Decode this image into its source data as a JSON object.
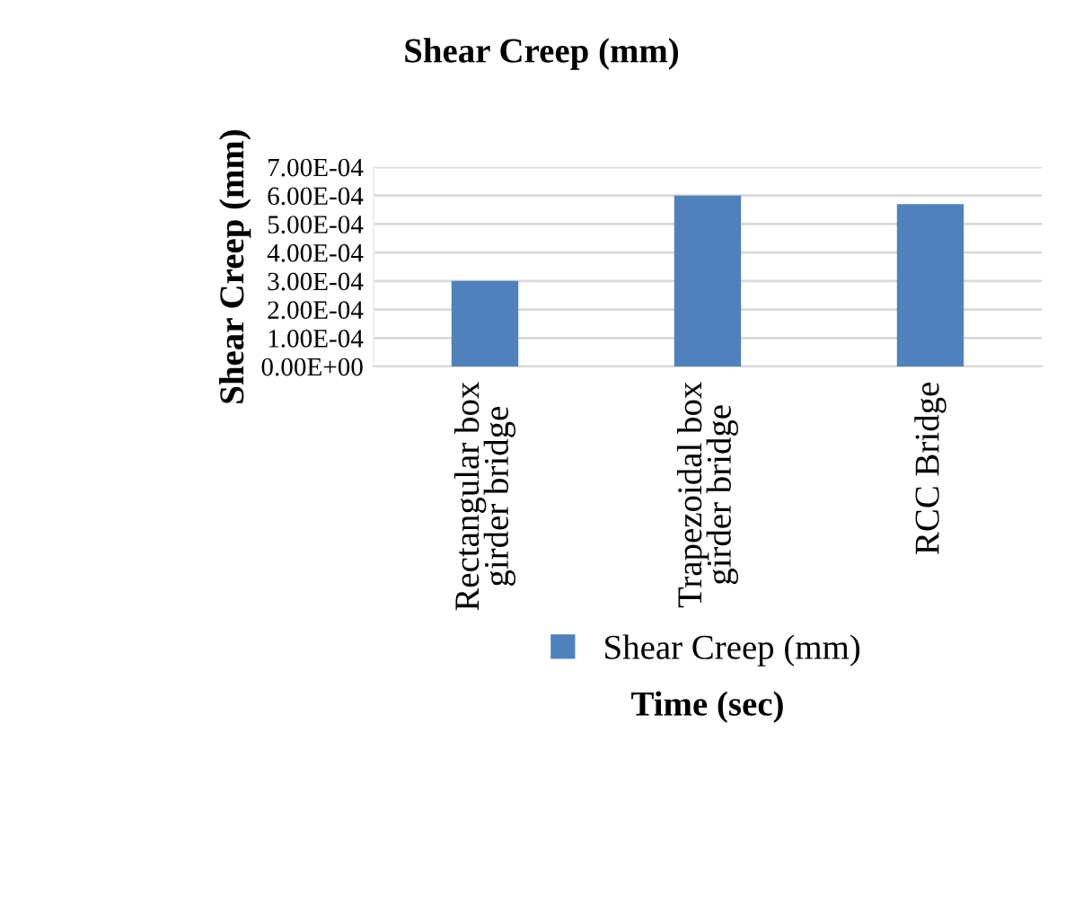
{
  "chart_data": {
    "type": "bar",
    "title": "Shear Creep (mm)",
    "xlabel": "Time (sec)",
    "ylabel": "Shear Creep (mm)",
    "categories": [
      "Rectangular box\ngirder bridge",
      "Trapezoidal box\ngirder bridge",
      "RCC Bridge"
    ],
    "series": [
      {
        "name": "Shear Creep (mm)",
        "color": "#4f81bd",
        "values": [
          0.0003,
          0.0006,
          0.00057
        ]
      }
    ],
    "ylim": [
      0,
      0.0007
    ],
    "yticks": [
      {
        "value": 0,
        "label": "0.00E+00"
      },
      {
        "value": 0.0001,
        "label": "1.00E-04"
      },
      {
        "value": 0.0002,
        "label": "2.00E-04"
      },
      {
        "value": 0.0003,
        "label": "3.00E-04"
      },
      {
        "value": 0.0004,
        "label": "4.00E-04"
      },
      {
        "value": 0.0005,
        "label": "5.00E-04"
      },
      {
        "value": 0.0006,
        "label": "6.00E-04"
      },
      {
        "value": 0.0007,
        "label": "7.00E-04"
      }
    ],
    "grid": "y",
    "legend": "bottom"
  }
}
